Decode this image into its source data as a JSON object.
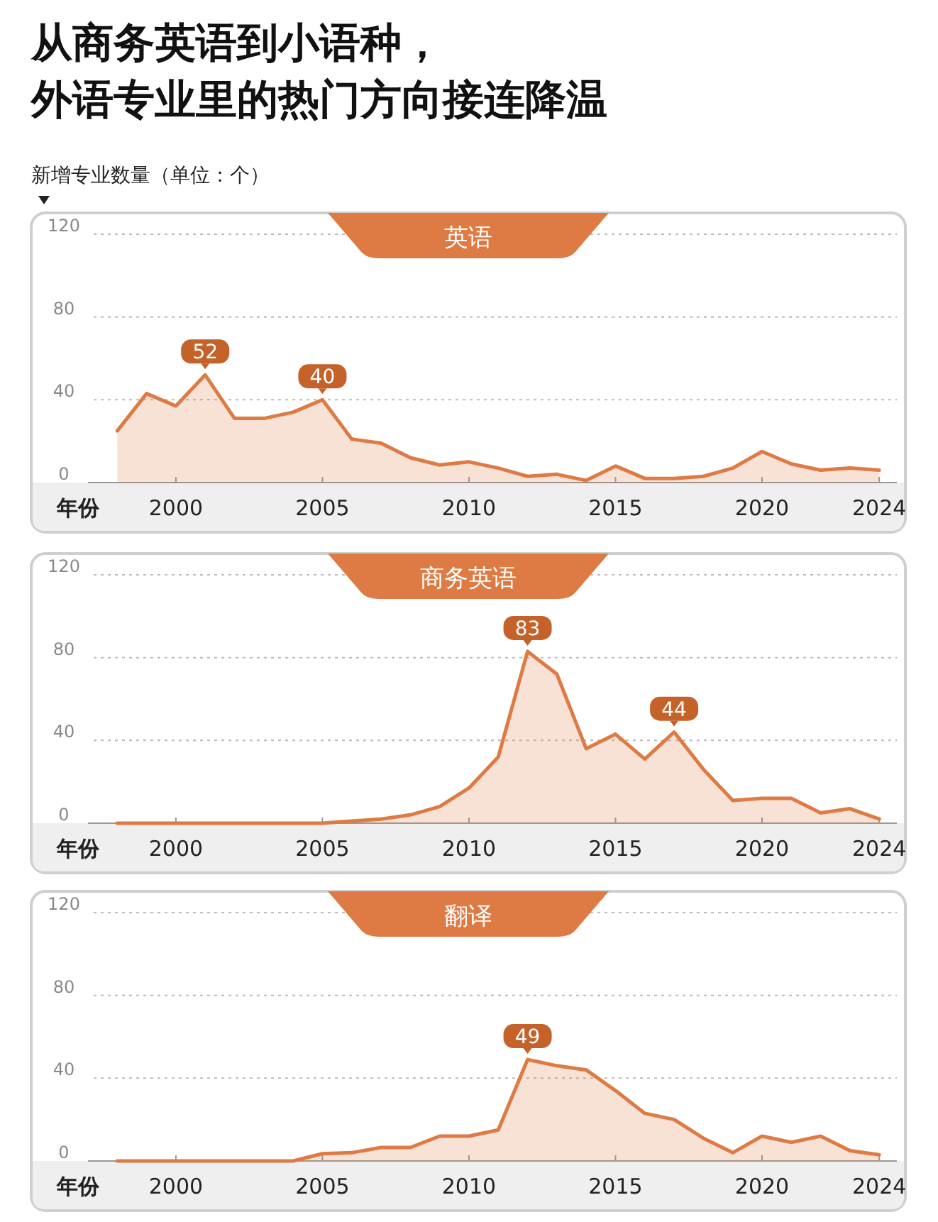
{
  "chart_data": [
    {
      "type": "area",
      "title": "从商务英语到小语种，外语专业里的热门方向接连降温",
      "ylabel": "新增专业数量（单位：个）",
      "xlabel": "年份",
      "x": [
        1998,
        1999,
        2000,
        2001,
        2002,
        2003,
        2004,
        2005,
        2006,
        2007,
        2008,
        2009,
        2010,
        2011,
        2012,
        2013,
        2014,
        2015,
        2016,
        2017,
        2018,
        2019,
        2020,
        2021,
        2022,
        2023,
        2024
      ],
      "series": [
        {
          "name": "英语",
          "color": "#de7a43",
          "values": [
            25,
            43,
            37,
            52,
            31,
            31,
            34,
            40,
            21,
            19,
            12,
            8.5,
            10,
            7,
            3,
            4,
            1,
            8,
            2,
            2,
            3,
            7,
            15,
            9,
            6,
            7,
            6
          ],
          "value_labels": [
            null,
            null,
            null,
            "52",
            null,
            null,
            null,
            "40",
            null,
            null,
            null,
            null,
            null,
            null,
            null,
            null,
            null,
            null,
            null,
            null,
            null,
            null,
            null,
            null,
            null,
            null,
            null
          ]
        }
      ],
      "xlim": [
        1997,
        2024.6
      ],
      "xticks": [
        2000,
        2005,
        2010,
        2015,
        2020,
        2024
      ],
      "ylim": [
        0,
        120
      ],
      "yticks": [
        0,
        40,
        80,
        120
      ],
      "grid": "y"
    },
    {
      "type": "area",
      "xlabel": "年份",
      "x": [
        1998,
        1999,
        2000,
        2001,
        2002,
        2003,
        2004,
        2005,
        2006,
        2007,
        2008,
        2009,
        2010,
        2011,
        2012,
        2013,
        2014,
        2015,
        2016,
        2017,
        2018,
        2019,
        2020,
        2021,
        2022,
        2023,
        2024
      ],
      "series": [
        {
          "name": "商务英语",
          "color": "#de7a43",
          "values": [
            0,
            0,
            0,
            0,
            0,
            0,
            0,
            0,
            1,
            2,
            4,
            8,
            17,
            32,
            83,
            72,
            36,
            43,
            31,
            44,
            26,
            11,
            12,
            12,
            5,
            7,
            2
          ],
          "value_labels": [
            null,
            null,
            null,
            null,
            null,
            null,
            null,
            null,
            null,
            null,
            null,
            null,
            null,
            null,
            "83",
            null,
            null,
            null,
            null,
            "44",
            null,
            null,
            null,
            null,
            null,
            null,
            null
          ]
        }
      ],
      "xlim": [
        1997,
        2024.6
      ],
      "xticks": [
        2000,
        2005,
        2010,
        2015,
        2020,
        2024
      ],
      "ylim": [
        0,
        120
      ],
      "yticks": [
        0,
        40,
        80,
        120
      ],
      "grid": "y"
    },
    {
      "type": "area",
      "xlabel": "年份",
      "x": [
        1998,
        1999,
        2000,
        2001,
        2002,
        2003,
        2004,
        2005,
        2006,
        2007,
        2008,
        2009,
        2010,
        2011,
        2012,
        2013,
        2014,
        2015,
        2016,
        2017,
        2018,
        2019,
        2020,
        2021,
        2022,
        2023,
        2024
      ],
      "series": [
        {
          "name": "翻译",
          "color": "#de7a43",
          "values": [
            0,
            0,
            0,
            0,
            0,
            0,
            0,
            3.5,
            4,
            6.5,
            6.5,
            12,
            12,
            15,
            49,
            46,
            44,
            34,
            23,
            20,
            11,
            4,
            12,
            9,
            12,
            5,
            3
          ],
          "value_labels": [
            null,
            null,
            null,
            null,
            null,
            null,
            null,
            null,
            null,
            null,
            null,
            null,
            null,
            null,
            "49",
            null,
            null,
            null,
            null,
            null,
            null,
            null,
            null,
            null,
            null,
            null,
            null
          ]
        }
      ],
      "xlim": [
        1997,
        2024.6
      ],
      "xticks": [
        2000,
        2005,
        2010,
        2015,
        2020,
        2024
      ],
      "ylim": [
        0,
        120
      ],
      "yticks": [
        0,
        40,
        80,
        120
      ],
      "grid": "y"
    }
  ]
}
